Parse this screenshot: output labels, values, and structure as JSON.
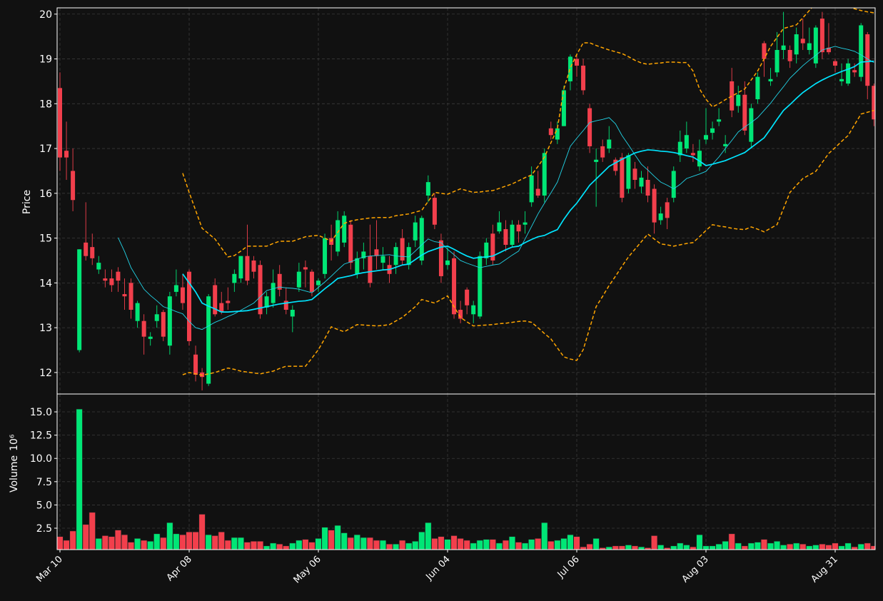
{
  "chart_data": {
    "type": "candlestick",
    "ylabel": "Price",
    "categories": [
      "Mar 10",
      null,
      null,
      null,
      null,
      null,
      null,
      null,
      null,
      null,
      null,
      null,
      null,
      null,
      null,
      null,
      null,
      null,
      null,
      null,
      "Apr 08",
      null,
      null,
      null,
      null,
      null,
      null,
      null,
      null,
      null,
      null,
      null,
      null,
      null,
      null,
      null,
      null,
      null,
      null,
      null,
      "May 06",
      null,
      null,
      null,
      null,
      null,
      null,
      null,
      null,
      null,
      null,
      null,
      null,
      null,
      null,
      null,
      null,
      null,
      null,
      null,
      "Jun 04",
      null,
      null,
      null,
      null,
      null,
      null,
      null,
      null,
      null,
      null,
      null,
      null,
      null,
      null,
      null,
      null,
      null,
      null,
      null,
      "Jul 06",
      null,
      null,
      null,
      null,
      null,
      null,
      null,
      null,
      null,
      null,
      null,
      null,
      null,
      null,
      null,
      null,
      null,
      null,
      null,
      "Aug 03",
      null,
      null,
      null,
      null,
      null,
      null,
      null,
      null,
      null,
      null,
      null,
      null,
      null,
      null,
      null,
      null,
      null,
      null,
      null,
      "Aug 31",
      null,
      null,
      null,
      null,
      null,
      null
    ],
    "open": [
      18.35,
      16.95,
      16.5,
      12.5,
      14.9,
      14.8,
      14.3,
      14.1,
      14.1,
      14.25,
      13.75,
      14.0,
      13.15,
      13.15,
      12.75,
      13.15,
      13.35,
      12.6,
      13.8,
      13.9,
      14.25,
      12.4,
      12.0,
      11.75,
      13.95,
      13.55,
      13.6,
      14.0,
      14.1,
      14.6,
      14.5,
      14.4,
      13.45,
      13.55,
      14.2,
      13.6,
      13.25,
      13.9,
      14.35,
      14.25,
      13.95,
      14.2,
      15.0,
      14.7,
      14.9,
      15.3,
      14.2,
      14.55,
      14.6,
      14.75,
      14.45,
      14.4,
      14.4,
      15.0,
      14.4,
      14.95,
      14.5,
      15.95,
      15.9,
      14.95,
      14.4,
      14.55,
      13.4,
      13.85,
      13.3,
      13.25,
      14.55,
      15.1,
      15.15,
      15.2,
      14.85,
      15.3,
      15.3,
      15.8,
      16.1,
      15.95,
      17.45,
      17.2,
      17.5,
      18.5,
      19.0,
      18.85,
      17.9,
      16.7,
      17.05,
      17.0,
      16.75,
      16.8,
      16.1,
      16.55,
      16.15,
      16.3,
      16.1,
      15.4,
      15.8,
      15.9,
      16.85,
      17.0,
      16.9,
      16.6,
      17.2,
      17.35,
      17.6,
      17.05,
      18.5,
      17.95,
      18.2,
      17.15,
      18.1,
      19.35,
      18.5,
      18.7,
      19.2,
      19.2,
      19.1,
      19.45,
      19.2,
      18.9,
      19.9,
      19.25,
      18.95,
      18.5,
      18.45,
      18.75,
      18.6,
      19.55,
      18.4
    ],
    "high": [
      18.7,
      17.6,
      17.0,
      14.75,
      15.8,
      15.1,
      14.6,
      14.3,
      14.3,
      14.35,
      14.1,
      14.1,
      13.6,
      13.3,
      12.9,
      13.5,
      13.4,
      13.8,
      14.3,
      14.2,
      14.3,
      12.6,
      12.1,
      13.75,
      14.1,
      13.8,
      13.9,
      14.3,
      14.6,
      15.3,
      14.6,
      14.5,
      13.8,
      14.3,
      14.4,
      13.9,
      13.5,
      14.45,
      14.5,
      14.3,
      14.1,
      15.1,
      15.3,
      15.6,
      15.6,
      15.4,
      14.7,
      14.9,
      15.3,
      15.4,
      14.8,
      14.6,
      14.9,
      15.2,
      14.9,
      15.5,
      15.5,
      16.4,
      16.0,
      15.1,
      14.8,
      14.7,
      13.6,
      13.9,
      13.6,
      14.7,
      15.0,
      15.3,
      15.6,
      15.4,
      15.4,
      15.4,
      15.6,
      16.6,
      16.5,
      17.0,
      17.6,
      17.6,
      18.4,
      19.1,
      19.1,
      19.0,
      18.0,
      17.0,
      17.2,
      17.5,
      16.8,
      16.9,
      16.9,
      16.7,
      16.5,
      16.6,
      16.2,
      15.7,
      15.9,
      16.6,
      17.4,
      17.6,
      17.1,
      17.2,
      17.9,
      17.6,
      17.9,
      17.3,
      18.8,
      18.4,
      18.5,
      18.0,
      18.7,
      19.4,
      18.8,
      19.6,
      20.05,
      19.3,
      19.7,
      19.9,
      19.7,
      19.75,
      20.05,
      19.8,
      19.0,
      18.9,
      19.0,
      18.9,
      19.8,
      19.6,
      18.45
    ],
    "low": [
      16.5,
      16.3,
      15.6,
      12.45,
      14.5,
      14.4,
      14.2,
      13.9,
      13.8,
      13.8,
      13.4,
      13.2,
      13.0,
      12.4,
      12.6,
      13.0,
      12.7,
      12.4,
      13.7,
      13.4,
      12.6,
      11.8,
      11.6,
      11.7,
      13.25,
      13.3,
      13.4,
      13.8,
      14.0,
      13.95,
      14.1,
      13.2,
      13.3,
      13.45,
      13.7,
      13.3,
      12.9,
      13.8,
      13.9,
      13.7,
      13.8,
      14.1,
      14.5,
      14.6,
      14.8,
      14.3,
      14.1,
      14.3,
      13.9,
      14.3,
      14.3,
      14.0,
      14.2,
      14.4,
      14.3,
      14.8,
      14.4,
      15.8,
      15.2,
      14.0,
      14.3,
      13.2,
      13.1,
      13.3,
      13.1,
      13.2,
      14.4,
      14.4,
      15.1,
      14.7,
      14.8,
      14.9,
      15.1,
      15.7,
      15.9,
      15.8,
      17.2,
      17.1,
      17.5,
      18.3,
      18.6,
      18.2,
      16.9,
      15.7,
      16.7,
      16.9,
      16.4,
      15.8,
      16.0,
      16.1,
      16.0,
      15.8,
      15.1,
      15.3,
      15.2,
      15.8,
      16.7,
      16.9,
      16.7,
      16.5,
      17.1,
      17.2,
      17.5,
      16.9,
      17.7,
      17.8,
      17.3,
      17.0,
      18.0,
      18.6,
      18.4,
      18.6,
      19.0,
      18.8,
      18.9,
      19.2,
      19.1,
      18.8,
      19.0,
      19.1,
      18.7,
      18.4,
      18.4,
      18.6,
      18.5,
      18.1,
      17.5
    ],
    "close": [
      16.8,
      16.8,
      15.85,
      14.75,
      14.6,
      14.55,
      14.45,
      14.05,
      13.95,
      14.05,
      13.7,
      13.4,
      13.55,
      12.8,
      12.8,
      13.3,
      12.8,
      13.7,
      13.95,
      13.55,
      12.7,
      11.95,
      11.9,
      13.7,
      13.3,
      13.35,
      13.55,
      14.2,
      14.6,
      14.05,
      14.25,
      13.3,
      13.7,
      14.0,
      13.85,
      13.4,
      13.4,
      14.25,
      14.3,
      13.8,
      14.05,
      15.0,
      14.85,
      15.4,
      15.5,
      14.45,
      14.55,
      14.7,
      14.0,
      14.6,
      14.6,
      14.2,
      14.8,
      14.5,
      14.8,
      15.35,
      15.45,
      16.25,
      15.3,
      14.15,
      14.5,
      13.3,
      13.2,
      13.5,
      13.5,
      14.6,
      14.9,
      14.5,
      15.35,
      14.85,
      15.3,
      15.15,
      15.35,
      16.4,
      15.95,
      16.9,
      17.3,
      17.45,
      18.3,
      19.05,
      18.85,
      18.3,
      17.05,
      16.75,
      16.8,
      17.2,
      16.5,
      15.9,
      16.85,
      16.3,
      16.35,
      15.95,
      15.35,
      15.55,
      15.45,
      16.5,
      17.15,
      17.3,
      16.85,
      16.95,
      17.3,
      17.45,
      17.65,
      17.1,
      17.85,
      18.2,
      17.4,
      17.9,
      18.6,
      19.0,
      18.55,
      19.2,
      19.3,
      18.95,
      19.55,
      19.35,
      19.35,
      19.7,
      19.15,
      19.15,
      18.85,
      18.55,
      18.9,
      18.7,
      19.75,
      18.4,
      17.65
    ],
    "up_color": "#00e676",
    "down_color": "#f23f4c",
    "ylim": [
      11.52,
      20.14
    ],
    "yticks": [
      12,
      13,
      14,
      15,
      16,
      17,
      18,
      19,
      20
    ],
    "grid": true,
    "overlays": [
      {
        "color": "#22d3e6",
        "linestyle": "solid",
        "values": [
          null,
          null,
          null,
          null,
          null,
          null,
          null,
          null,
          null,
          15.01,
          14.7,
          14.34,
          14.1,
          13.86,
          13.72,
          13.6,
          13.47,
          13.42,
          13.36,
          13.31,
          13.14,
          13.0,
          12.96,
          13.04,
          13.12,
          13.18,
          13.25,
          13.31,
          13.39,
          13.47,
          13.55,
          13.69,
          13.83,
          13.87,
          13.91,
          13.89,
          13.88,
          13.86,
          13.82,
          13.78,
          13.9,
          14.02,
          14.15,
          14.29,
          14.42,
          14.47,
          14.53,
          14.58,
          14.6,
          14.61,
          14.62,
          14.63,
          14.6,
          14.59,
          14.58,
          14.71,
          14.85,
          14.98,
          14.92,
          14.9,
          14.75,
          14.63,
          14.5,
          14.44,
          14.39,
          14.34,
          14.37,
          14.4,
          14.42,
          14.52,
          14.62,
          14.71,
          14.98,
          15.26,
          15.54,
          15.78,
          16.01,
          16.25,
          16.65,
          17.05,
          17.23,
          17.4,
          17.58,
          17.62,
          17.65,
          17.69,
          17.55,
          17.29,
          17.08,
          16.86,
          16.65,
          16.52,
          16.38,
          16.25,
          16.18,
          16.1,
          16.2,
          16.33,
          16.38,
          16.43,
          16.49,
          16.65,
          16.81,
          17.0,
          17.18,
          17.37,
          17.48,
          17.58,
          17.69,
          17.85,
          18.01,
          18.2,
          18.38,
          18.57,
          18.71,
          18.85,
          18.97,
          19.08,
          19.2,
          19.24,
          19.28,
          19.24,
          19.21,
          19.17,
          19.09,
          19.0,
          18.92
        ]
      },
      {
        "color": "#00e5ff",
        "linestyle": "solid",
        "values": [
          null,
          null,
          null,
          null,
          null,
          null,
          null,
          null,
          null,
          null,
          null,
          null,
          null,
          null,
          null,
          null,
          null,
          null,
          null,
          14.2,
          14.0,
          13.8,
          13.55,
          13.48,
          13.42,
          13.35,
          13.35,
          13.36,
          13.37,
          13.38,
          13.41,
          13.44,
          13.47,
          13.5,
          13.53,
          13.55,
          13.57,
          13.59,
          13.6,
          13.63,
          13.75,
          13.87,
          13.98,
          14.1,
          14.13,
          14.16,
          14.2,
          14.23,
          14.25,
          14.27,
          14.29,
          14.3,
          14.35,
          14.4,
          14.42,
          14.52,
          14.62,
          14.7,
          14.75,
          14.8,
          14.82,
          14.75,
          14.67,
          14.6,
          14.55,
          14.57,
          14.58,
          14.6,
          14.67,
          14.74,
          14.8,
          14.82,
          14.9,
          14.97,
          15.03,
          15.06,
          15.13,
          15.19,
          15.42,
          15.62,
          15.78,
          15.98,
          16.18,
          16.32,
          16.46,
          16.6,
          16.68,
          16.76,
          16.83,
          16.9,
          16.94,
          16.97,
          16.96,
          16.94,
          16.93,
          16.91,
          16.88,
          16.84,
          16.81,
          16.72,
          16.62,
          16.65,
          16.69,
          16.73,
          16.79,
          16.85,
          16.91,
          17.02,
          17.13,
          17.24,
          17.44,
          17.65,
          17.85,
          17.98,
          18.12,
          18.25,
          18.35,
          18.45,
          18.53,
          18.6,
          18.66,
          18.72,
          18.77,
          18.83,
          18.93,
          18.94,
          18.95
        ]
      },
      {
        "color": "#ffa500",
        "linestyle": "dashed",
        "values": [
          null,
          null,
          null,
          null,
          null,
          null,
          null,
          null,
          null,
          null,
          null,
          null,
          null,
          null,
          null,
          null,
          null,
          null,
          null,
          16.45,
          16.02,
          15.62,
          15.22,
          15.1,
          14.98,
          14.78,
          14.58,
          14.61,
          14.71,
          14.82,
          14.82,
          14.82,
          14.82,
          14.88,
          14.93,
          14.93,
          14.93,
          14.98,
          15.03,
          15.05,
          15.06,
          15.0,
          14.93,
          15.13,
          15.33,
          15.38,
          15.41,
          15.43,
          15.45,
          15.46,
          15.46,
          15.46,
          15.5,
          15.52,
          15.54,
          15.58,
          15.62,
          15.82,
          16.02,
          16.0,
          15.98,
          16.04,
          16.1,
          16.06,
          16.02,
          16.03,
          16.05,
          16.06,
          16.11,
          16.16,
          16.21,
          16.28,
          16.35,
          16.41,
          16.6,
          16.81,
          17.13,
          17.45,
          18.33,
          18.8,
          19.1,
          19.36,
          19.36,
          19.3,
          19.25,
          19.2,
          19.16,
          19.12,
          19.05,
          18.97,
          18.91,
          18.88,
          18.9,
          18.91,
          18.93,
          18.93,
          18.92,
          18.92,
          18.73,
          18.33,
          18.1,
          17.93,
          18.0,
          18.09,
          18.17,
          18.25,
          18.33,
          18.53,
          18.73,
          19.0,
          19.28,
          19.48,
          19.68,
          19.72,
          19.76,
          19.92,
          20.08,
          20.25,
          20.25,
          20.24,
          20.22,
          20.2,
          20.16,
          20.12,
          20.08,
          20.05,
          20.03
        ]
      },
      {
        "color": "#ffa500",
        "linestyle": "dashed",
        "values": [
          null,
          null,
          null,
          null,
          null,
          null,
          null,
          null,
          null,
          null,
          null,
          null,
          null,
          null,
          null,
          null,
          null,
          null,
          null,
          11.95,
          12.0,
          11.97,
          11.94,
          11.97,
          12.0,
          12.05,
          12.1,
          12.07,
          12.03,
          12.01,
          11.99,
          11.97,
          12.0,
          12.03,
          12.09,
          12.14,
          12.14,
          12.14,
          12.14,
          12.32,
          12.51,
          12.76,
          13.02,
          12.96,
          12.91,
          12.99,
          13.07,
          13.06,
          13.05,
          13.04,
          13.05,
          13.07,
          13.15,
          13.23,
          13.35,
          13.47,
          13.63,
          13.59,
          13.55,
          13.63,
          13.71,
          13.47,
          13.23,
          13.13,
          13.04,
          13.05,
          13.06,
          13.07,
          13.09,
          13.1,
          13.12,
          13.14,
          13.15,
          13.12,
          13.0,
          12.87,
          12.75,
          12.55,
          12.35,
          12.3,
          12.27,
          12.51,
          12.99,
          13.47,
          13.7,
          13.94,
          14.15,
          14.37,
          14.58,
          14.75,
          14.92,
          15.09,
          14.98,
          14.87,
          14.85,
          14.82,
          14.85,
          14.88,
          14.9,
          15.03,
          15.17,
          15.3,
          15.27,
          15.25,
          15.22,
          15.2,
          15.19,
          15.25,
          15.2,
          15.14,
          15.22,
          15.3,
          15.66,
          16.02,
          16.18,
          16.33,
          16.41,
          16.49,
          16.69,
          16.89,
          17.02,
          17.16,
          17.29,
          17.53,
          17.77,
          17.81,
          17.85
        ]
      }
    ],
    "volume": {
      "label": "Volume",
      "scale": "10⁶",
      "values": [
        1.6,
        1.2,
        2.2,
        15.3,
        2.9,
        4.2,
        1.4,
        1.7,
        1.6,
        2.3,
        1.8,
        1.0,
        1.4,
        1.2,
        1.1,
        1.9,
        1.5,
        3.1,
        1.9,
        1.8,
        2.1,
        2.1,
        4.0,
        1.8,
        1.7,
        2.1,
        1.2,
        1.5,
        1.5,
        1.0,
        1.1,
        1.1,
        0.6,
        0.9,
        0.8,
        0.6,
        0.9,
        1.2,
        1.3,
        1.0,
        1.4,
        2.6,
        2.3,
        2.8,
        2.0,
        1.5,
        1.8,
        1.5,
        1.5,
        1.2,
        1.2,
        0.8,
        0.8,
        1.2,
        0.9,
        1.1,
        2.1,
        3.1,
        1.4,
        1.6,
        1.3,
        1.7,
        1.4,
        1.2,
        0.9,
        1.2,
        1.3,
        1.3,
        0.9,
        1.2,
        1.6,
        1.0,
        0.9,
        1.3,
        1.4,
        3.1,
        1.1,
        1.2,
        1.4,
        1.8,
        1.6,
        0.5,
        0.8,
        1.4,
        0.4,
        0.5,
        0.6,
        0.6,
        0.7,
        0.6,
        0.5,
        0.4,
        1.7,
        0.7,
        0.4,
        0.6,
        0.9,
        0.7,
        0.5,
        1.8,
        0.6,
        0.6,
        0.8,
        1.1,
        1.9,
        0.9,
        0.6,
        0.9,
        1.0,
        1.3,
        0.9,
        1.1,
        0.7,
        0.8,
        0.9,
        0.8,
        0.6,
        0.7,
        0.8,
        0.7,
        0.9,
        0.6,
        0.9,
        0.5,
        0.8,
        0.9,
        0.6
      ],
      "ylim": [
        0.2,
        16.92
      ],
      "yticks": [
        2.5,
        {
          "value": 5,
          "label": "5.0"
        },
        7.5,
        {
          "value": 10,
          "label": "10.0"
        },
        12.5,
        {
          "value": 15,
          "label": "15.0"
        }
      ]
    }
  }
}
